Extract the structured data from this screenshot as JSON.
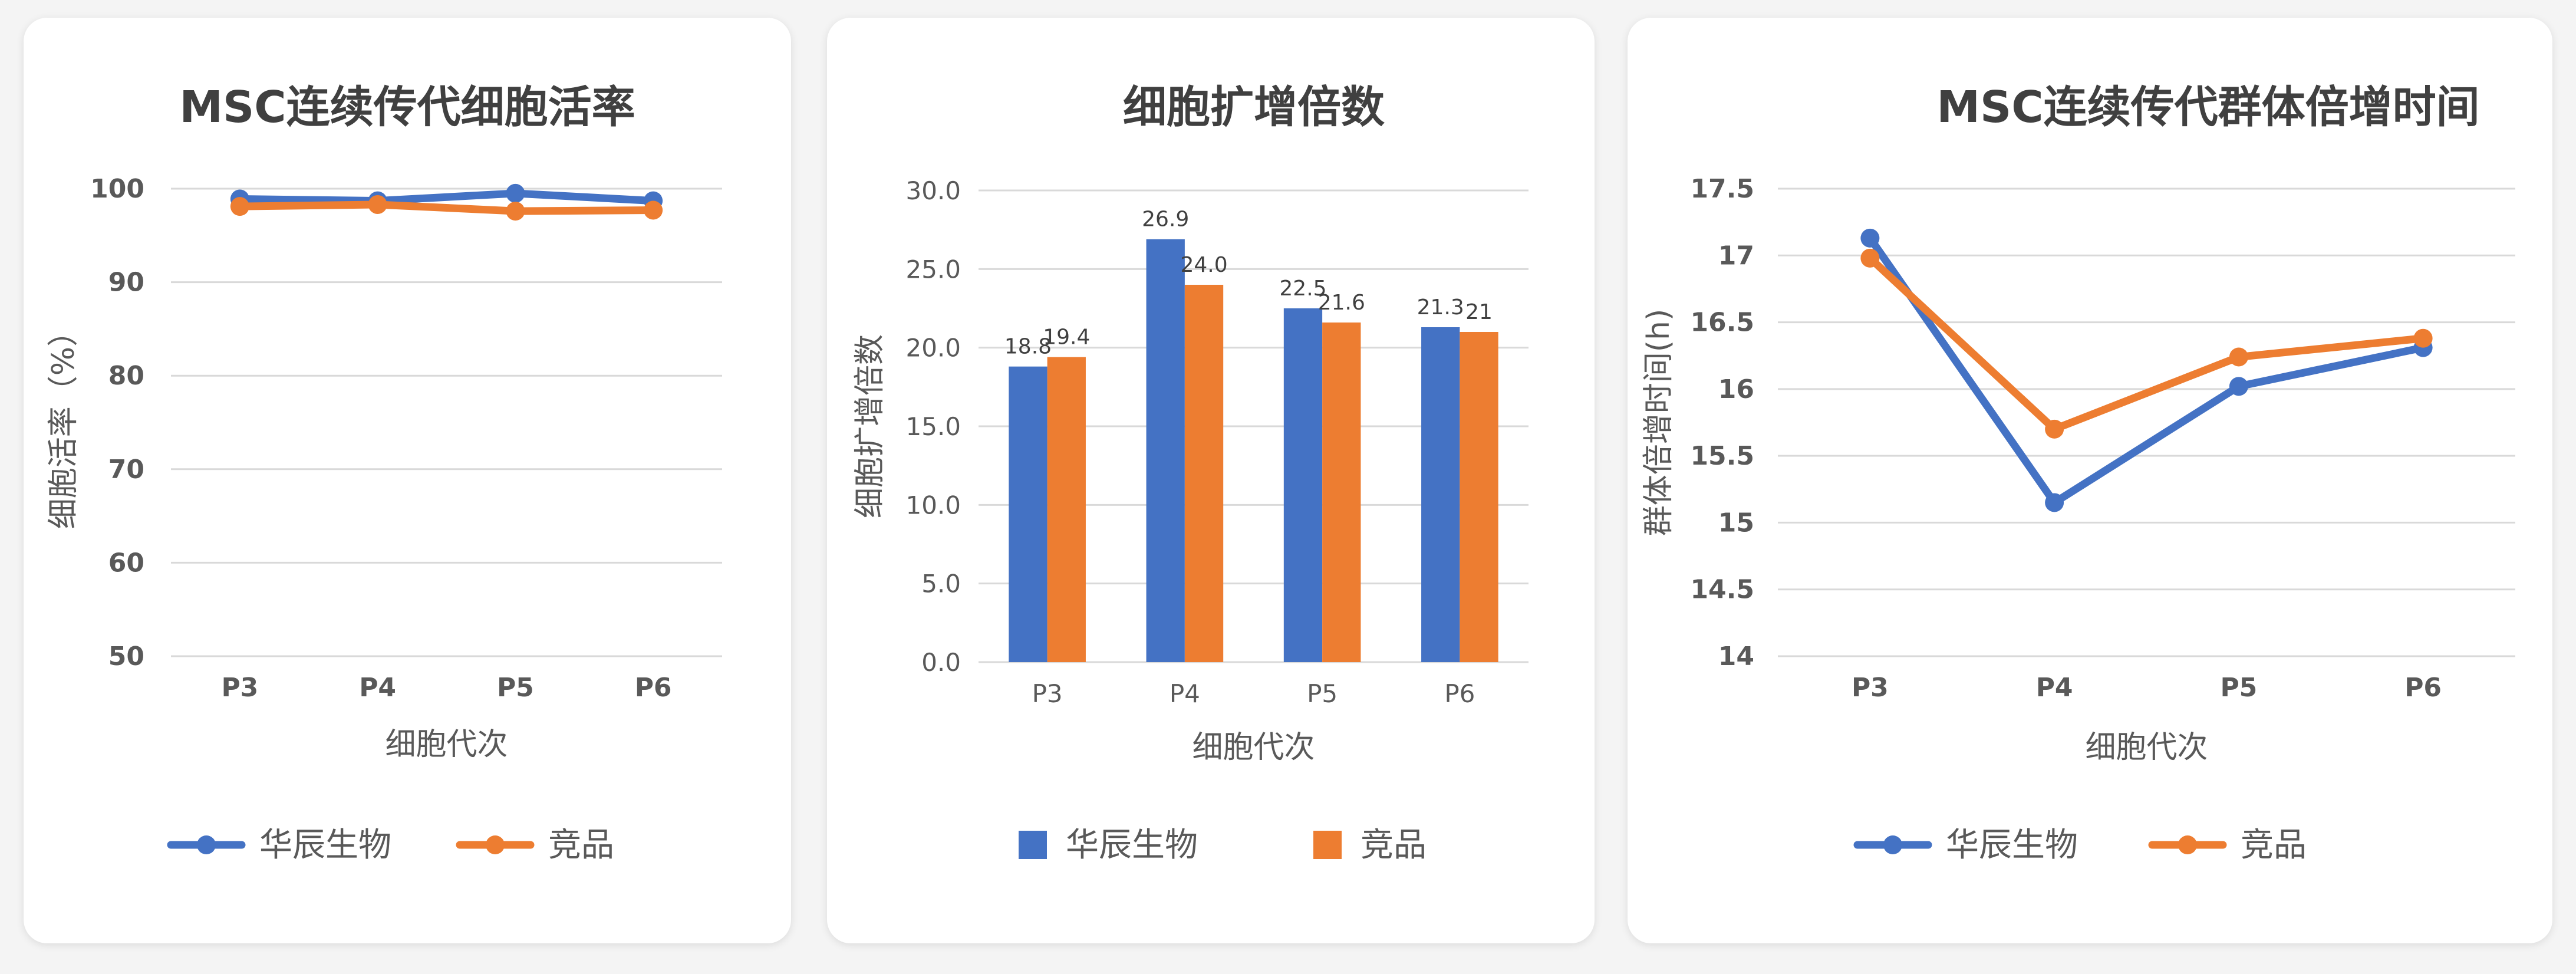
{
  "colors": {
    "primary": "#4472c4",
    "secondary": "#ed7d31",
    "grid": "#d9d9d9",
    "text": "#595959",
    "title": "#404040"
  },
  "chart_data": [
    {
      "type": "line",
      "title": "MSC连续传代细胞活率",
      "xlabel": "细胞代次",
      "ylabel": "细胞活率（%）",
      "categories": [
        "P3",
        "P4",
        "P5",
        "P6"
      ],
      "ylim": [
        50,
        100
      ],
      "yticks": [
        "100",
        "90",
        "80",
        "70",
        "60",
        "50"
      ],
      "grid": true,
      "legend_position": "bottom",
      "series": [
        {
          "name": "华辰生物",
          "values": [
            98.9,
            98.7,
            99.5,
            98.7
          ]
        },
        {
          "name": "竞品",
          "values": [
            98.1,
            98.3,
            97.6,
            97.7
          ]
        }
      ]
    },
    {
      "type": "bar",
      "title": "细胞扩增倍数",
      "xlabel": "细胞代次",
      "ylabel": "细胞扩增倍数",
      "categories": [
        "P3",
        "P4",
        "P5",
        "P6"
      ],
      "ylim": [
        0,
        30
      ],
      "yticks": [
        "30.0",
        "25.0",
        "20.0",
        "15.0",
        "10.0",
        "5.0",
        "0.0"
      ],
      "grid": true,
      "legend_position": "bottom",
      "series": [
        {
          "name": "华辰生物",
          "values": [
            18.8,
            26.9,
            22.5,
            21.3
          ],
          "labels": [
            "18.8",
            "26.9",
            "22.5",
            "21.3"
          ]
        },
        {
          "name": "竞品",
          "values": [
            19.4,
            24.0,
            21.6,
            21.0
          ],
          "labels": [
            "19.4",
            "24.0",
            "21.6",
            "21"
          ]
        }
      ]
    },
    {
      "type": "line",
      "title": "MSC连续传代群体倍增时间",
      "xlabel": "细胞代次",
      "ylabel": "群体倍增时间(h)",
      "categories": [
        "P3",
        "P4",
        "P5",
        "P6"
      ],
      "ylim": [
        14,
        17.5
      ],
      "yticks": [
        "17.5",
        "17",
        "16.5",
        "16",
        "15.5",
        "15",
        "14.5",
        "14"
      ],
      "grid": true,
      "legend_position": "bottom",
      "series": [
        {
          "name": "华辰生物",
          "values": [
            17.13,
            15.15,
            16.02,
            16.31
          ]
        },
        {
          "name": "竞品",
          "values": [
            16.98,
            15.7,
            16.24,
            16.38
          ]
        }
      ]
    }
  ]
}
